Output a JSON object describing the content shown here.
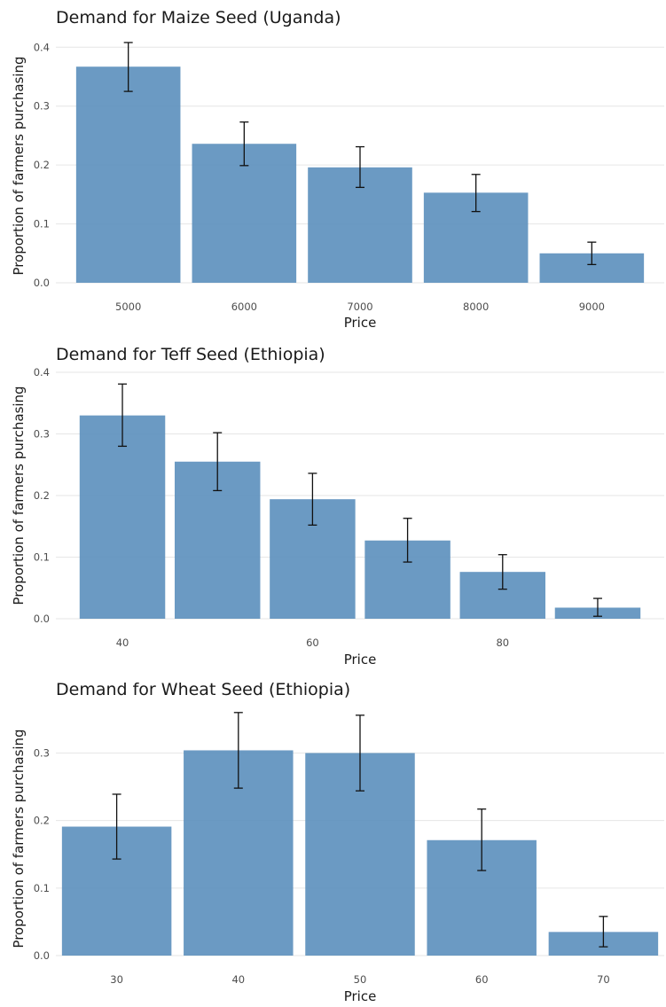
{
  "chart_data": [
    {
      "type": "bar",
      "title": "Demand for Maize Seed (Uganda)",
      "xlabel": "Price",
      "ylabel": "Proportion of farmers purchasing",
      "ylim": [
        0,
        0.42
      ],
      "yticks": [
        0.0,
        0.1,
        0.2,
        0.3,
        0.4
      ],
      "ytick_labels": [
        "0.0",
        "0.1",
        "0.2",
        "0.3",
        "0.4"
      ],
      "xlim": [
        4375,
        9625
      ],
      "xticks": [
        5000,
        6000,
        7000,
        8000,
        9000
      ],
      "xtick_labels": [
        "5000",
        "6000",
        "7000",
        "8000",
        "9000"
      ],
      "bar_width": 900,
      "grid": true,
      "bar_color": "#5b8fbd",
      "bars": [
        {
          "x": 5000,
          "y": 0.367,
          "lo": 0.325,
          "hi": 0.408
        },
        {
          "x": 6000,
          "y": 0.236,
          "lo": 0.199,
          "hi": 0.273
        },
        {
          "x": 7000,
          "y": 0.196,
          "lo": 0.162,
          "hi": 0.231
        },
        {
          "x": 8000,
          "y": 0.153,
          "lo": 0.121,
          "hi": 0.184
        },
        {
          "x": 9000,
          "y": 0.05,
          "lo": 0.031,
          "hi": 0.069
        }
      ]
    },
    {
      "type": "bar",
      "title": "Demand for Teff Seed (Ethiopia)",
      "xlabel": "Price",
      "ylabel": "Proportion of farmers purchasing",
      "ylim": [
        0,
        0.4
      ],
      "yticks": [
        0.0,
        0.1,
        0.2,
        0.3,
        0.4
      ],
      "ytick_labels": [
        "0.0",
        "0.1",
        "0.2",
        "0.3",
        "0.4"
      ],
      "xlim": [
        33.0,
        97.0
      ],
      "xticks": [
        40,
        60,
        80
      ],
      "xtick_labels": [
        "40",
        "60",
        "80"
      ],
      "bar_width": 9,
      "grid": true,
      "bar_color": "#5b8fbd",
      "bars": [
        {
          "x": 40,
          "y": 0.33,
          "lo": 0.28,
          "hi": 0.381
        },
        {
          "x": 50,
          "y": 0.255,
          "lo": 0.208,
          "hi": 0.302
        },
        {
          "x": 60,
          "y": 0.194,
          "lo": 0.152,
          "hi": 0.236
        },
        {
          "x": 70,
          "y": 0.127,
          "lo": 0.092,
          "hi": 0.163
        },
        {
          "x": 80,
          "y": 0.076,
          "lo": 0.048,
          "hi": 0.104
        },
        {
          "x": 90,
          "y": 0.018,
          "lo": 0.004,
          "hi": 0.033
        }
      ]
    },
    {
      "type": "bar",
      "title": "Demand for Wheat Seed (Ethiopia)",
      "xlabel": "Price",
      "ylabel": "Proportion of farmers purchasing",
      "ylim": [
        0,
        0.365
      ],
      "yticks": [
        0.0,
        0.1,
        0.2,
        0.3
      ],
      "ytick_labels": [
        "0.0",
        "0.1",
        "0.2",
        "0.3"
      ],
      "xlim": [
        25.0,
        75.0
      ],
      "xticks": [
        30,
        40,
        50,
        60,
        70
      ],
      "xtick_labels": [
        "30",
        "40",
        "50",
        "60",
        "70"
      ],
      "bar_width": 9,
      "grid": true,
      "bar_color": "#5b8fbd",
      "bars": [
        {
          "x": 30,
          "y": 0.191,
          "lo": 0.143,
          "hi": 0.239
        },
        {
          "x": 40,
          "y": 0.304,
          "lo": 0.248,
          "hi": 0.36
        },
        {
          "x": 50,
          "y": 0.3,
          "lo": 0.244,
          "hi": 0.356
        },
        {
          "x": 60,
          "y": 0.171,
          "lo": 0.126,
          "hi": 0.217
        },
        {
          "x": 70,
          "y": 0.035,
          "lo": 0.013,
          "hi": 0.058
        }
      ]
    }
  ]
}
